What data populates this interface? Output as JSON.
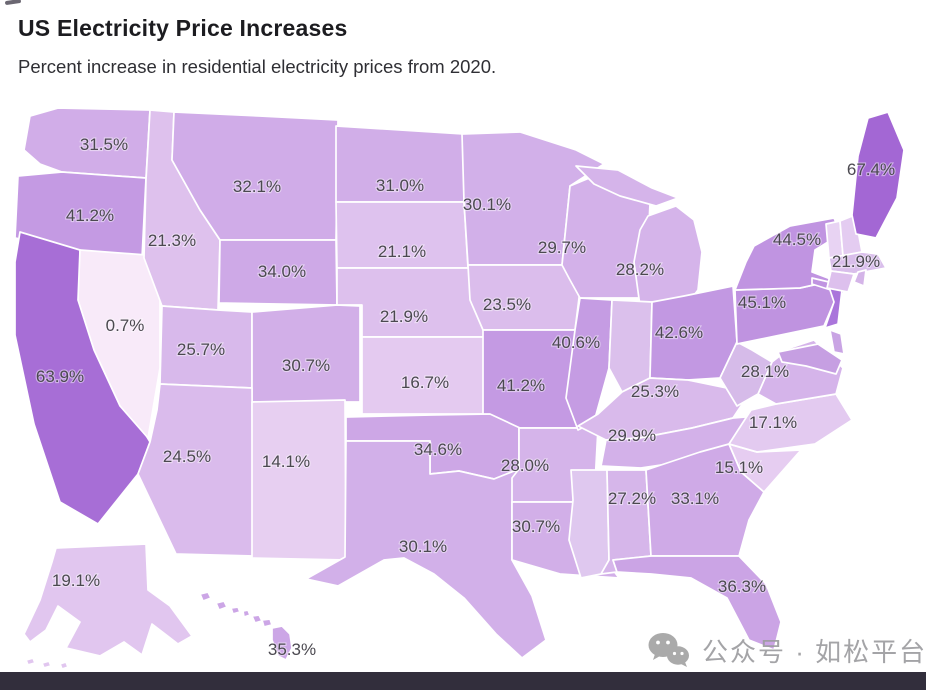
{
  "header": {
    "title": "US Electricity Price Increases",
    "subtitle": "Percent increase in residential electricity prices from 2020."
  },
  "watermark": {
    "icon": "wechat-icon",
    "text": "公众号 · 如松平台"
  },
  "colors": {
    "background": "#ffffff",
    "state_border": "#ffffff",
    "label_text": "#4b4950",
    "footer_bar": "#322e3c",
    "watermark_gray": "#9d9da0"
  },
  "chart_data": {
    "type": "choropleth",
    "title": "US Electricity Price Increases",
    "subtitle": "Percent increase in residential electricity prices from 2020.",
    "unit": "%",
    "legend": "none",
    "color_scale": {
      "low_color": "#f9ebf9",
      "high_color": "#a266d4",
      "domain": [
        0,
        68
      ]
    },
    "states": [
      {
        "abbr": "WA",
        "name": "Washington",
        "value": 31.5,
        "label": "31.5%"
      },
      {
        "abbr": "OR",
        "name": "Oregon",
        "value": 41.2,
        "label": "41.2%"
      },
      {
        "abbr": "CA",
        "name": "California",
        "value": 63.9,
        "label": "63.9%"
      },
      {
        "abbr": "NV",
        "name": "Nevada",
        "value": 0.7,
        "label": "0.7%"
      },
      {
        "abbr": "ID",
        "name": "Idaho",
        "value": 21.3,
        "label": "21.3%"
      },
      {
        "abbr": "MT",
        "name": "Montana",
        "value": 32.1,
        "label": "32.1%"
      },
      {
        "abbr": "WY",
        "name": "Wyoming",
        "value": 34.0,
        "label": "34.0%"
      },
      {
        "abbr": "UT",
        "name": "Utah",
        "value": 25.7,
        "label": "25.7%"
      },
      {
        "abbr": "CO",
        "name": "Colorado",
        "value": 30.7,
        "label": "30.7%"
      },
      {
        "abbr": "AZ",
        "name": "Arizona",
        "value": 24.5,
        "label": "24.5%"
      },
      {
        "abbr": "NM",
        "name": "New Mexico",
        "value": 14.1,
        "label": "14.1%"
      },
      {
        "abbr": "ND",
        "name": "North Dakota",
        "value": 31.0,
        "label": "31.0%"
      },
      {
        "abbr": "SD",
        "name": "South Dakota",
        "value": 21.1,
        "label": "21.1%"
      },
      {
        "abbr": "NE",
        "name": "Nebraska",
        "value": 21.9,
        "label": "21.9%"
      },
      {
        "abbr": "KS",
        "name": "Kansas",
        "value": 16.7,
        "label": "16.7%"
      },
      {
        "abbr": "OK",
        "name": "Oklahoma",
        "value": 34.6,
        "label": "34.6%"
      },
      {
        "abbr": "TX",
        "name": "Texas",
        "value": 30.1,
        "label": "30.1%"
      },
      {
        "abbr": "MN",
        "name": "Minnesota",
        "value": 30.1,
        "label": "30.1%"
      },
      {
        "abbr": "IA",
        "name": "Iowa",
        "value": 23.5,
        "label": "23.5%"
      },
      {
        "abbr": "MO",
        "name": "Missouri",
        "value": 41.2,
        "label": "41.2%"
      },
      {
        "abbr": "AR",
        "name": "Arkansas",
        "value": 28.0,
        "label": "28.0%"
      },
      {
        "abbr": "LA",
        "name": "Louisiana",
        "value": 30.7,
        "label": "30.7%"
      },
      {
        "abbr": "WI",
        "name": "Wisconsin",
        "value": 29.7,
        "label": "29.7%"
      },
      {
        "abbr": "IL",
        "name": "Illinois",
        "value": 40.6,
        "label": "40.6%"
      },
      {
        "abbr": "MI",
        "name": "Michigan",
        "value": 28.2,
        "label": "28.2%"
      },
      {
        "abbr": "IN",
        "name": "Indiana",
        "value": null,
        "label": "",
        "fill": "#dbc0ec"
      },
      {
        "abbr": "OH",
        "name": "Ohio",
        "value": 42.6,
        "label": "42.6%"
      },
      {
        "abbr": "KY",
        "name": "Kentucky",
        "value": 25.3,
        "label": "25.3%"
      },
      {
        "abbr": "TN",
        "name": "Tennessee",
        "value": 29.9,
        "label": "29.9%"
      },
      {
        "abbr": "MS",
        "name": "Mississippi",
        "value": null,
        "label": "",
        "fill": "#dfc8ef"
      },
      {
        "abbr": "AL",
        "name": "Alabama",
        "value": 27.2,
        "label": "27.2%"
      },
      {
        "abbr": "GA",
        "name": "Georgia",
        "value": 33.1,
        "label": "33.1%"
      },
      {
        "abbr": "FL",
        "name": "Florida",
        "value": 36.3,
        "label": "36.3%"
      },
      {
        "abbr": "SC",
        "name": "South Carolina",
        "value": 15.1,
        "label": "15.1%"
      },
      {
        "abbr": "NC",
        "name": "North Carolina",
        "value": 17.1,
        "label": "17.1%"
      },
      {
        "abbr": "VA",
        "name": "Virginia",
        "value": 28.1,
        "label": "28.1%"
      },
      {
        "abbr": "WV",
        "name": "West Virginia",
        "value": null,
        "label": "",
        "fill": "#d6bbe9"
      },
      {
        "abbr": "PA",
        "name": "Pennsylvania",
        "value": 45.1,
        "label": "45.1%"
      },
      {
        "abbr": "NY",
        "name": "New York",
        "value": 44.5,
        "label": "44.5%"
      },
      {
        "abbr": "NJ",
        "name": "New Jersey",
        "value": null,
        "label": "",
        "fill": "#aa75db"
      },
      {
        "abbr": "MD",
        "name": "Maryland",
        "value": null,
        "label": "",
        "fill": "#c69fe2"
      },
      {
        "abbr": "DE",
        "name": "Delaware",
        "value": null,
        "label": "",
        "fill": "#c9a4e4"
      },
      {
        "abbr": "VT",
        "name": "Vermont",
        "value": null,
        "label": "",
        "fill": "#e8d3f3"
      },
      {
        "abbr": "NH",
        "name": "New Hampshire",
        "value": null,
        "label": "",
        "fill": "#e4ccf1"
      },
      {
        "abbr": "MA",
        "name": "Massachusetts",
        "value": null,
        "label": "",
        "fill": "#d9beeb"
      },
      {
        "abbr": "CT",
        "name": "Connecticut",
        "value": 21.9,
        "label": "21.9%"
      },
      {
        "abbr": "RI",
        "name": "Rhode Island",
        "value": null,
        "label": "",
        "fill": "#d4b4e8"
      },
      {
        "abbr": "ME",
        "name": "Maine",
        "value": 67.4,
        "label": "67.4%"
      },
      {
        "abbr": "AK",
        "name": "Alaska",
        "value": 19.1,
        "label": "19.1%"
      },
      {
        "abbr": "HI",
        "name": "Hawaii",
        "value": 35.3,
        "label": "35.3%"
      }
    ]
  }
}
